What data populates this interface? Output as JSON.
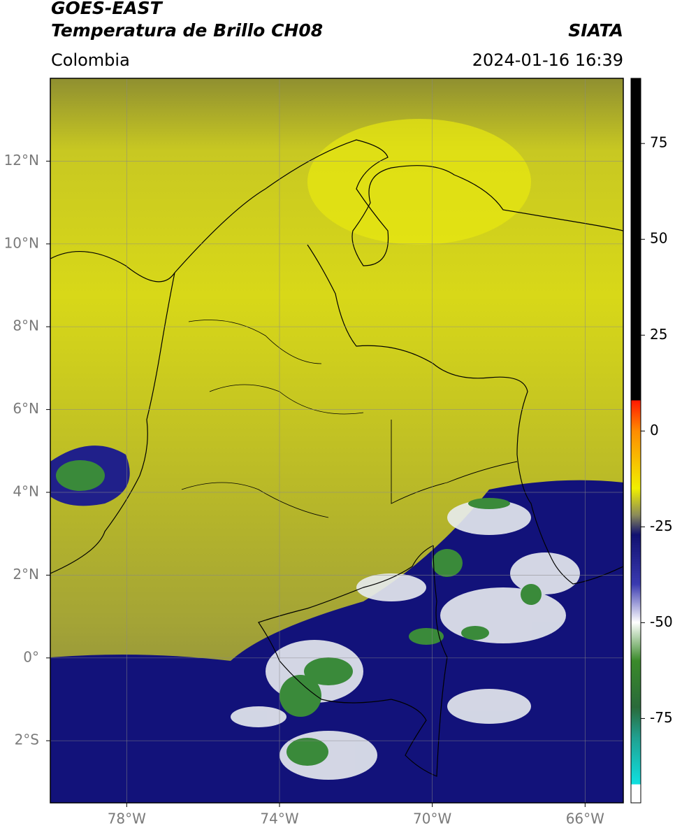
{
  "header": {
    "title": "GOES-EAST",
    "subtitle": "Temperatura de Brillo CH08",
    "source": "SIATA",
    "region": "Colombia",
    "datetime": "2024-01-16 16:39"
  },
  "map": {
    "xlim": [
      -80,
      -65
    ],
    "ylim": [
      -3.5,
      14
    ],
    "xticks": [
      {
        "value": -78,
        "label": "78°W"
      },
      {
        "value": -74,
        "label": "74°W"
      },
      {
        "value": -70,
        "label": "70°W"
      },
      {
        "value": -66,
        "label": "66°W"
      }
    ],
    "yticks": [
      {
        "value": 12,
        "label": "12°N"
      },
      {
        "value": 10,
        "label": "10°N"
      },
      {
        "value": 8,
        "label": "8°N"
      },
      {
        "value": 6,
        "label": "6°N"
      },
      {
        "value": 4,
        "label": "4°N"
      },
      {
        "value": 2,
        "label": "2°N"
      },
      {
        "value": 0,
        "label": "0°"
      },
      {
        "value": -2,
        "label": "2°S"
      }
    ],
    "grid": true
  },
  "colorbar": {
    "lim": [
      -97,
      92
    ],
    "ticks": [
      75,
      50,
      25,
      0,
      -25,
      -50,
      -75
    ]
  }
}
